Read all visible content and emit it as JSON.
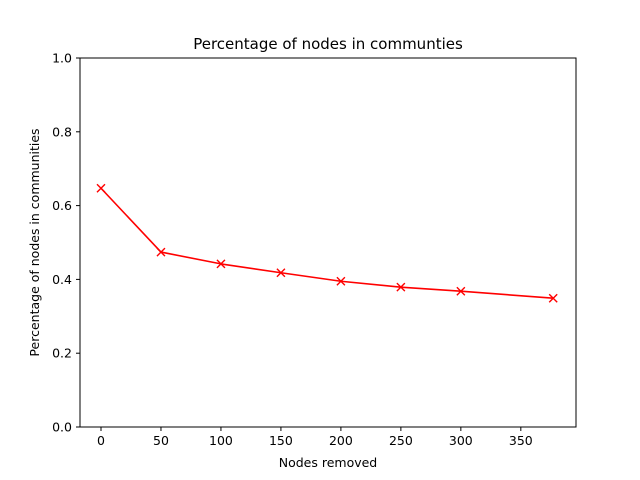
{
  "chart_data": {
    "type": "line",
    "title": "Percentage of nodes in communties",
    "xlabel": "Nodes removed",
    "ylabel": "Percentage of nodes in communities",
    "xlim": [
      -17.5,
      396
    ],
    "ylim": [
      0,
      1.0
    ],
    "xticks": [
      0,
      50,
      100,
      150,
      200,
      250,
      300,
      350
    ],
    "yticks": [
      0.0,
      0.2,
      0.4,
      0.6,
      0.8,
      1.0
    ],
    "xtick_labels": [
      "0",
      "50",
      "100",
      "150",
      "200",
      "250",
      "300",
      "350"
    ],
    "ytick_labels": [
      "0.0",
      "0.2",
      "0.4",
      "0.6",
      "0.8",
      "1.0"
    ],
    "grid": false,
    "series": [
      {
        "color": "#ff0000",
        "marker": "x",
        "x": [
          0,
          50,
          100,
          150,
          200,
          250,
          300,
          377
        ],
        "y": [
          0.647,
          0.474,
          0.442,
          0.418,
          0.395,
          0.379,
          0.368,
          0.349
        ]
      }
    ]
  }
}
